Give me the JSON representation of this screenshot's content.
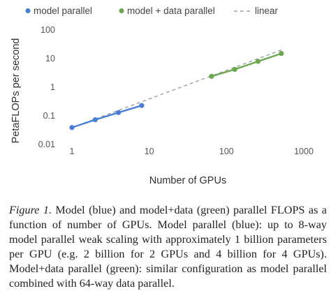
{
  "chart_data": {
    "type": "line",
    "title": "",
    "xlabel": "Number of GPUs",
    "ylabel": "PetaFLOPs per second",
    "xscale": "log",
    "yscale": "log",
    "xlim": [
      1,
      1000
    ],
    "ylim": [
      0.01,
      100
    ],
    "xticks": [
      "1",
      "10",
      "100",
      "1000"
    ],
    "yticks": [
      "0.01",
      "0.1",
      "1",
      "10",
      "100"
    ],
    "grid": "none",
    "legend": "top",
    "series": [
      {
        "name": "model parallel",
        "color": "#4a7fd6",
        "style": "solid-with-markers",
        "x": [
          1,
          2,
          4,
          8
        ],
        "y": [
          0.039,
          0.073,
          0.13,
          0.23
        ]
      },
      {
        "name": "model + data parallel",
        "color": "#6aa84f",
        "style": "solid-with-markers",
        "x": [
          64,
          128,
          256,
          512
        ],
        "y": [
          2.4,
          4.2,
          8,
          15.1
        ]
      },
      {
        "name": "linear",
        "color": "#9e9e9e",
        "style": "dashed",
        "x": [
          1,
          512
        ],
        "y": [
          0.039,
          20
        ]
      }
    ]
  },
  "legend": {
    "marker_dot": "•",
    "marker_dash": "– –"
  },
  "caption": {
    "label": "Figure 1.",
    "text": " Model (blue) and model+data (green) parallel FLOPS as a function of number of GPUs. Model parallel (blue): up to 8-way model parallel weak scaling with approximately 1 billion parameters per GPU (e.g. 2 billion for 2 GPUs and 4 billion for 4 GPUs). Model+data parallel (green): similar configuration as model parallel combined with 64-way data parallel."
  }
}
